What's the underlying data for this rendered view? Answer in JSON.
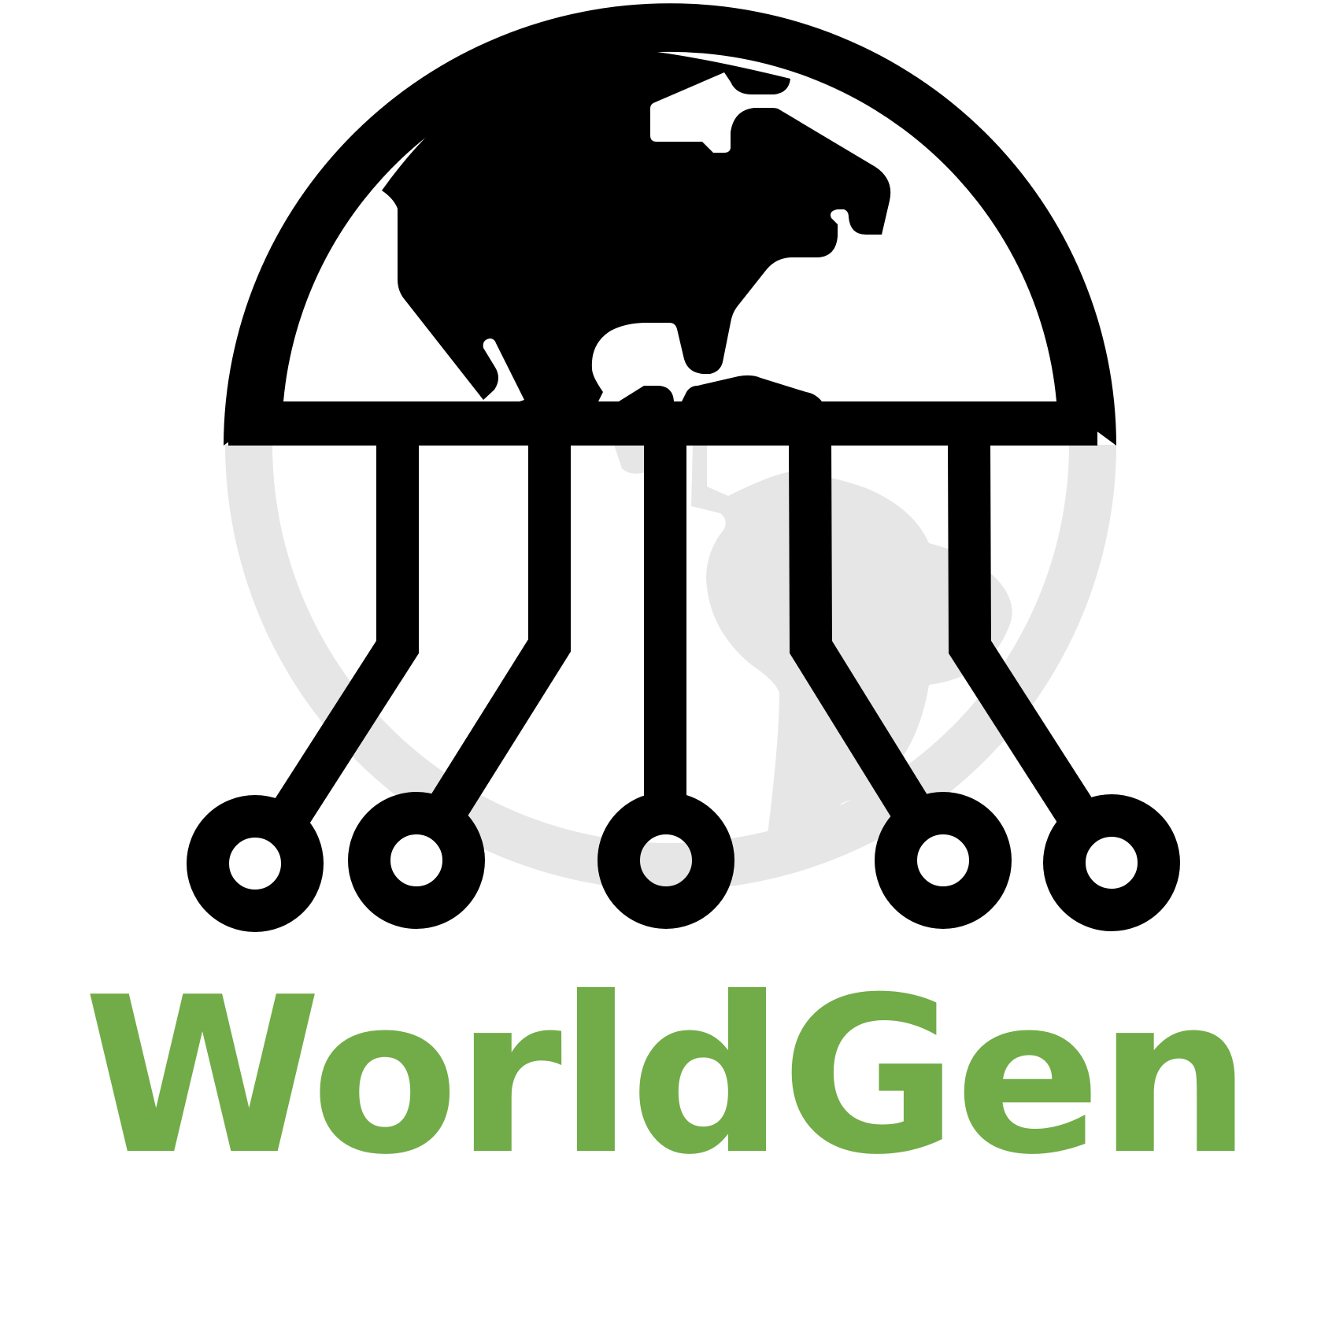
{
  "brand": {
    "name": "WorldGen",
    "name_color": "#72AC48"
  },
  "colors": {
    "ink": "#000000",
    "ghost": "#E6E6E6",
    "background": "#FFFFFF"
  },
  "icons": {
    "logo": "globe-circuit-icon"
  }
}
